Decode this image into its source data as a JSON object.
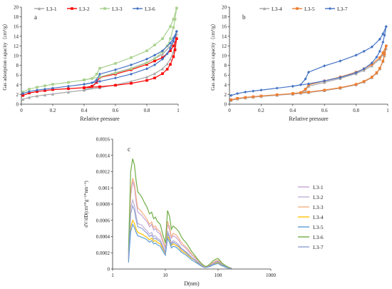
{
  "chart_data": [
    {
      "id": "a",
      "type": "line",
      "panel_label": "a",
      "title": "",
      "xlabel": "Relative pressure",
      "ylabel": "Gas adsorption capacity（cm³/g）",
      "xlim": [
        0,
        1
      ],
      "ylim": [
        0,
        20
      ],
      "xticks": [
        "0",
        "0.2",
        "0.4",
        "0.6",
        "0.8",
        "1"
      ],
      "yticks": [
        "0",
        "2",
        "4",
        "6",
        "8",
        "10",
        "12",
        "14",
        "16",
        "18",
        "20"
      ],
      "grid": false,
      "legend": "top",
      "series": [
        {
          "name": "L3-1",
          "color": "#a6a6a6",
          "marker": "triangle",
          "adsorption": {
            "x": [
              0.01,
              0.05,
              0.1,
              0.15,
              0.2,
              0.3,
              0.4,
              0.5,
              0.6,
              0.7,
              0.8,
              0.85,
              0.9,
              0.93,
              0.95,
              0.97,
              0.98,
              0.99
            ],
            "y": [
              1.0,
              1.4,
              1.7,
              1.9,
              2.1,
              2.5,
              2.9,
              3.4,
              4.0,
              4.7,
              5.6,
              6.3,
              7.3,
              8.3,
              9.3,
              10.8,
              12.2,
              14.5
            ]
          },
          "desorption": {
            "x": [
              0.99,
              0.97,
              0.95,
              0.9,
              0.85,
              0.8,
              0.7,
              0.6,
              0.5,
              0.48,
              0.45,
              0.4
            ],
            "y": [
              14.5,
              13.0,
              12.0,
              10.3,
              9.4,
              8.6,
              7.4,
              6.5,
              5.6,
              4.5,
              3.4,
              3.0
            ]
          }
        },
        {
          "name": "L3-2",
          "color": "#ff0000",
          "marker": "square",
          "adsorption": {
            "x": [
              0.01,
              0.05,
              0.1,
              0.15,
              0.2,
              0.3,
              0.4,
              0.5,
              0.6,
              0.7,
              0.8,
              0.85,
              0.9,
              0.93,
              0.95,
              0.97,
              0.98,
              0.99
            ],
            "y": [
              1.8,
              2.3,
              2.6,
              2.8,
              3.0,
              3.2,
              3.4,
              3.6,
              3.9,
              4.3,
              4.9,
              5.4,
              6.3,
              7.2,
              8.2,
              9.8,
              11.2,
              13.5
            ]
          },
          "desorption": {
            "x": [
              0.99,
              0.97,
              0.95,
              0.9,
              0.85,
              0.8,
              0.7,
              0.6,
              0.5,
              0.48,
              0.45,
              0.4
            ],
            "y": [
              13.5,
              12.0,
              11.0,
              9.6,
              8.9,
              8.2,
              7.1,
              6.2,
              5.5,
              4.5,
              3.7,
              3.4
            ]
          }
        },
        {
          "name": "L3-3",
          "color": "#a9d18e",
          "marker": "square",
          "adsorption": {
            "x": [
              0.01,
              0.05,
              0.1,
              0.15,
              0.2,
              0.3,
              0.4,
              0.5,
              0.6,
              0.7,
              0.8,
              0.85,
              0.9,
              0.93,
              0.95,
              0.97,
              0.98,
              0.99
            ],
            "y": [
              2.5,
              3.1,
              3.5,
              3.8,
              4.1,
              4.5,
              5.0,
              5.6,
              6.4,
              7.3,
              8.5,
              9.4,
              10.8,
              12.0,
              13.5,
              15.8,
              17.5,
              19.8
            ]
          },
          "desorption": {
            "x": [
              0.99,
              0.97,
              0.95,
              0.9,
              0.85,
              0.8,
              0.7,
              0.6,
              0.5,
              0.48,
              0.45,
              0.4
            ],
            "y": [
              19.8,
              17.5,
              16.0,
              13.5,
              12.2,
              11.0,
              9.6,
              8.4,
              7.4,
              6.2,
              5.3,
              5.0
            ]
          }
        },
        {
          "name": "L3-6",
          "color": "#4472c4",
          "marker": "diamond",
          "adsorption": {
            "x": [
              0.01,
              0.05,
              0.1,
              0.15,
              0.2,
              0.3,
              0.4,
              0.5,
              0.6,
              0.7,
              0.8,
              0.85,
              0.9,
              0.93,
              0.95,
              0.97,
              0.98,
              0.99
            ],
            "y": [
              2.2,
              2.6,
              2.9,
              3.1,
              3.3,
              3.7,
              4.1,
              4.7,
              5.4,
              6.2,
              7.3,
              8.1,
              9.3,
              10.4,
              11.5,
              13.0,
              14.0,
              15.0
            ]
          },
          "desorption": {
            "x": [
              0.99,
              0.97,
              0.95,
              0.9,
              0.85,
              0.8,
              0.7,
              0.6,
              0.5,
              0.48,
              0.45,
              0.4
            ],
            "y": [
              15.0,
              13.6,
              12.6,
              11.0,
              10.1,
              9.3,
              8.1,
              7.1,
              6.2,
              5.0,
              4.4,
              4.1
            ]
          }
        }
      ]
    },
    {
      "id": "b",
      "type": "line",
      "panel_label": "b",
      "title": "",
      "xlabel": "Relative pressure",
      "ylabel": "Gas adsorption capacity（cm³/g）",
      "xlim": [
        0,
        1
      ],
      "ylim": [
        0,
        20
      ],
      "xticks": [
        "0",
        "0.2",
        "0.4",
        "0.6",
        "0.8",
        "1"
      ],
      "yticks": [
        "0",
        "2",
        "4",
        "6",
        "8",
        "10",
        "12",
        "14",
        "16",
        "18",
        "20"
      ],
      "grid": false,
      "legend": "top",
      "series": [
        {
          "name": "L3-4",
          "color": "#a6a6a6",
          "marker": "triangle",
          "adsorption": {
            "x": [
              0.01,
              0.05,
              0.1,
              0.15,
              0.2,
              0.3,
              0.4,
              0.5,
              0.6,
              0.7,
              0.8,
              0.85,
              0.9,
              0.93,
              0.95,
              0.97,
              0.98,
              0.99
            ],
            "y": [
              0.8,
              1.1,
              1.3,
              1.45,
              1.6,
              1.85,
              2.1,
              2.4,
              2.8,
              3.3,
              4.0,
              4.6,
              5.5,
              6.4,
              7.3,
              8.8,
              10.0,
              11.5
            ]
          },
          "desorption": {
            "x": [
              0.99,
              0.97,
              0.95,
              0.9,
              0.85,
              0.8,
              0.7,
              0.6,
              0.5,
              0.48,
              0.45,
              0.4
            ],
            "y": [
              11.5,
              10.2,
              9.3,
              7.9,
              7.0,
              6.3,
              5.3,
              4.5,
              3.7,
              2.9,
              2.3,
              2.1
            ]
          }
        },
        {
          "name": "L3-5",
          "color": "#ed7d31",
          "marker": "square",
          "adsorption": {
            "x": [
              0.01,
              0.05,
              0.1,
              0.15,
              0.2,
              0.3,
              0.4,
              0.5,
              0.6,
              0.7,
              0.8,
              0.85,
              0.9,
              0.93,
              0.95,
              0.97,
              0.98,
              0.99
            ],
            "y": [
              0.9,
              1.2,
              1.4,
              1.55,
              1.7,
              1.95,
              2.2,
              2.5,
              2.9,
              3.4,
              4.1,
              4.7,
              5.6,
              6.5,
              7.4,
              8.9,
              10.3,
              12.0
            ]
          },
          "desorption": {
            "x": [
              0.99,
              0.97,
              0.95,
              0.9,
              0.85,
              0.8,
              0.7,
              0.6,
              0.5,
              0.48,
              0.45,
              0.4
            ],
            "y": [
              12.0,
              10.6,
              9.6,
              8.2,
              7.3,
              6.6,
              5.6,
              4.8,
              4.0,
              3.1,
              2.4,
              2.2
            ]
          }
        },
        {
          "name": "L3-7",
          "color": "#4472c4",
          "marker": "diamond",
          "adsorption": {
            "x": [
              0.01,
              0.05,
              0.1,
              0.15,
              0.2,
              0.3,
              0.4,
              0.5,
              0.6,
              0.7,
              0.8,
              0.85,
              0.9,
              0.93,
              0.95,
              0.97,
              0.98,
              0.99
            ],
            "y": [
              1.8,
              2.2,
              2.5,
              2.7,
              2.9,
              3.3,
              3.7,
              4.2,
              4.8,
              5.5,
              6.5,
              7.3,
              8.5,
              9.7,
              10.9,
              12.8,
              14.2,
              16.0
            ]
          },
          "desorption": {
            "x": [
              0.99,
              0.97,
              0.95,
              0.9,
              0.85,
              0.8,
              0.7,
              0.6,
              0.5,
              0.48,
              0.45,
              0.4
            ],
            "y": [
              16.0,
              14.5,
              13.4,
              11.8,
              10.9,
              10.1,
              8.9,
              7.9,
              6.6,
              5.2,
              4.0,
              3.7
            ]
          }
        }
      ]
    },
    {
      "id": "c",
      "type": "line",
      "panel_label": "c",
      "title": "",
      "xlabel": "D(nm)",
      "ylabel": "dV/dD(cm³*g⁻¹*nm⁻¹)",
      "xscale": "log",
      "xlim": [
        1,
        1000
      ],
      "ylim": [
        0,
        0.0016
      ],
      "xticks": [
        "1",
        "10",
        "100",
        "1000"
      ],
      "yticks": [
        "0",
        "0.0002",
        "0.0004",
        "0.0006",
        "0.0008",
        "0.001",
        "0.0012",
        "0.0014",
        "0.0016"
      ],
      "grid": false,
      "legend": "right",
      "x": [
        2,
        2.2,
        2.4,
        2.6,
        2.8,
        3,
        3.3,
        3.6,
        4,
        4.5,
        5,
        5.5,
        6,
        6.5,
        7,
        8,
        9,
        10,
        11,
        12,
        13,
        14,
        16,
        18,
        20,
        22,
        25,
        28,
        32,
        36,
        40,
        45,
        50,
        55,
        60,
        70,
        80,
        90,
        100,
        110,
        120,
        140,
        160,
        180
      ],
      "series": [
        {
          "name": "L3-1",
          "color": "#c9a3d6",
          "values": [
            0.00015,
            0.0009,
            0.00108,
            0.001,
            0.00082,
            0.0007,
            0.00068,
            0.00066,
            0.00062,
            0.00058,
            0.00052,
            0.00055,
            0.00048,
            0.0005,
            0.00046,
            0.00043,
            0.00033,
            0.00025,
            0.00055,
            0.00049,
            0.00038,
            0.00041,
            0.00039,
            0.00035,
            0.0003,
            0.00028,
            0.00025,
            0.00021,
            0.00017,
            0.00014,
            0.00011,
            7e-05,
            5e-05,
            3e-05,
            2e-05,
            4e-05,
            7e-05,
            9e-05,
            0.0001,
            8e-05,
            6e-05,
            3e-05,
            1e-05,
            1e-05
          ]
        },
        {
          "name": "L3-2",
          "color": "#bfb1d8",
          "values": [
            0.00012,
            0.00075,
            0.00085,
            0.00078,
            0.00065,
            0.00056,
            0.00055,
            0.00054,
            0.0005,
            0.00047,
            0.00043,
            0.00045,
            0.0004,
            0.00041,
            0.00038,
            0.00036,
            0.00028,
            0.00021,
            0.00047,
            0.00041,
            0.00032,
            0.00035,
            0.00033,
            0.0003,
            0.00026,
            0.00024,
            0.00021,
            0.00018,
            0.00014,
            0.00012,
            9e-05,
            6e-05,
            4e-05,
            2e-05,
            2e-05,
            4e-05,
            6e-05,
            8e-05,
            9e-05,
            7e-05,
            5e-05,
            3e-05,
            1e-05,
            1e-05
          ]
        },
        {
          "name": "L3-3",
          "color": "#f4b183",
          "values": [
            0.00018,
            0.00095,
            0.00112,
            0.00105,
            0.00088,
            0.00075,
            0.00073,
            0.0007,
            0.00066,
            0.00061,
            0.00055,
            0.00058,
            0.00051,
            0.00053,
            0.00049,
            0.00046,
            0.00035,
            0.00027,
            0.00059,
            0.00052,
            0.0004,
            0.00044,
            0.00042,
            0.00038,
            0.00033,
            0.0003,
            0.00027,
            0.00023,
            0.00018,
            0.00015,
            0.00012,
            8e-05,
            5e-05,
            3e-05,
            3e-05,
            5e-05,
            8e-05,
            0.0001,
            0.00011,
            9e-05,
            6e-05,
            3e-05,
            1e-05,
            1e-05
          ]
        },
        {
          "name": "L3-4",
          "color": "#ffc000",
          "values": [
            0.0001,
            0.00052,
            0.0006,
            0.00056,
            0.00049,
            0.00045,
            0.00044,
            0.00043,
            0.00041,
            0.00039,
            0.00036,
            0.00038,
            0.00034,
            0.00035,
            0.00033,
            0.00031,
            0.00025,
            0.00019,
            0.00041,
            0.00036,
            0.00029,
            0.00031,
            0.00029,
            0.00027,
            0.00023,
            0.00021,
            0.00019,
            0.00016,
            0.00013,
            0.00011,
            8e-05,
            5e-05,
            3e-05,
            2e-05,
            2e-05,
            4e-05,
            6e-05,
            7e-05,
            8e-05,
            6e-05,
            4e-05,
            2e-05,
            1e-05,
            1e-05
          ]
        },
        {
          "name": "L3-5",
          "color": "#5b9bd5",
          "values": [
            8e-05,
            0.00046,
            0.00055,
            0.00051,
            0.00045,
            0.00041,
            0.0004,
            0.00039,
            0.00038,
            0.00036,
            0.00033,
            0.00035,
            0.00031,
            0.00032,
            0.0003,
            0.00028,
            0.00022,
            0.00017,
            0.00038,
            0.00033,
            0.00026,
            0.00028,
            0.00027,
            0.00024,
            0.00021,
            0.00019,
            0.00017,
            0.00014,
            0.00011,
            9e-05,
            7e-05,
            5e-05,
            3e-05,
            2e-05,
            2e-05,
            3e-05,
            5e-05,
            6e-05,
            7e-05,
            5e-05,
            4e-05,
            2e-05,
            1e-05,
            1e-05
          ]
        },
        {
          "name": "L3-6",
          "color": "#70ad47",
          "values": [
            0.00022,
            0.0012,
            0.00136,
            0.00128,
            0.00108,
            0.00095,
            0.00092,
            0.00088,
            0.00082,
            0.00076,
            0.00068,
            0.0007,
            0.00062,
            0.00064,
            0.00059,
            0.00055,
            0.00042,
            0.00032,
            0.00072,
            0.00065,
            0.00049,
            0.00053,
            0.0005,
            0.00046,
            0.0004,
            0.00036,
            0.00032,
            0.00027,
            0.00021,
            0.00017,
            0.00013,
            9e-05,
            6e-05,
            4e-05,
            3e-05,
            6e-05,
            0.0001,
            0.00012,
            0.00013,
            0.0001,
            7e-05,
            4e-05,
            2e-05,
            1e-05
          ]
        },
        {
          "name": "L3-7",
          "color": "#8e9fd1",
          "values": [
            0.00013,
            0.00068,
            0.00078,
            0.00072,
            0.0006,
            0.00052,
            0.00051,
            0.0005,
            0.00047,
            0.00044,
            0.0004,
            0.00042,
            0.00037,
            0.00038,
            0.00036,
            0.00034,
            0.00027,
            0.0002,
            0.00044,
            0.00039,
            0.0003,
            0.00033,
            0.00031,
            0.00028,
            0.00025,
            0.00023,
            0.0002,
            0.00017,
            0.00014,
            0.00011,
            9e-05,
            6e-05,
            4e-05,
            2e-05,
            2e-05,
            4e-05,
            6e-05,
            8e-05,
            9e-05,
            7e-05,
            5e-05,
            3e-05,
            1e-05,
            1e-05
          ]
        }
      ]
    }
  ]
}
